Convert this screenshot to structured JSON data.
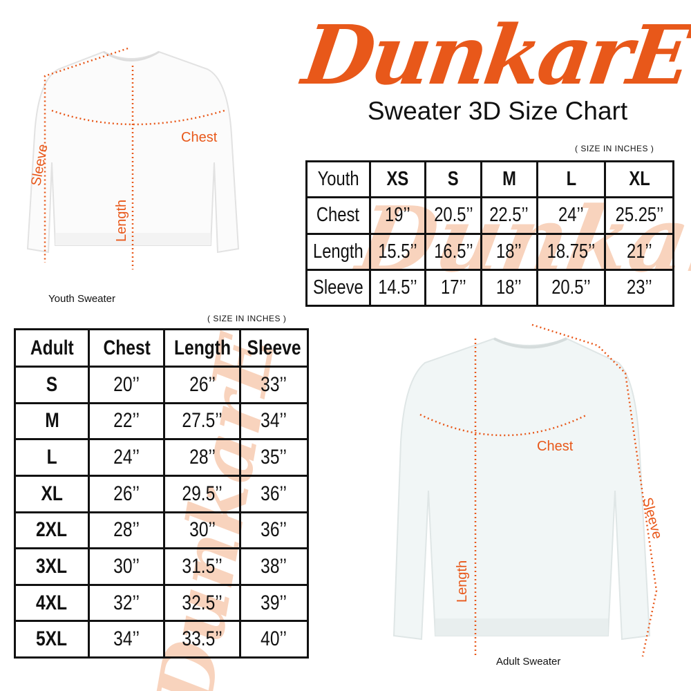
{
  "brand": {
    "logo_text": "DunkarE",
    "color": "#e8581a"
  },
  "title": "Sweater 3D Size Chart",
  "youth": {
    "unit_note": "( SIZE IN INCHES )",
    "header": [
      "Youth",
      "XS",
      "S",
      "M",
      "L",
      "XL"
    ],
    "rows": [
      {
        "label": "Chest",
        "values": [
          "19’’",
          "20.5’’",
          "22.5’’",
          "24’’",
          "25.25’’"
        ]
      },
      {
        "label": "Length",
        "values": [
          "15.5’’",
          "16.5’’",
          "18’’",
          "18.75’’",
          "21’’"
        ]
      },
      {
        "label": "Sleeve",
        "values": [
          "14.5’’",
          "17’’",
          "18’’",
          "20.5’’",
          "23’’"
        ]
      }
    ],
    "image_caption": "Youth Sweater",
    "measure_labels": {
      "chest": "Chest",
      "length": "Length",
      "sleeve": "Sleeve"
    }
  },
  "adult": {
    "unit_note": "( SIZE IN INCHES )",
    "header": [
      "Adult",
      "Chest",
      "Length",
      "Sleeve"
    ],
    "rows": [
      {
        "size": "S",
        "values": [
          "20’’",
          "26’’",
          "33’’"
        ]
      },
      {
        "size": "M",
        "values": [
          "22’’",
          "27.5’’",
          "34’’"
        ]
      },
      {
        "size": "L",
        "values": [
          "24’’",
          "28’’",
          "35’’"
        ]
      },
      {
        "size": "XL",
        "values": [
          "26’’",
          "29.5’’",
          "36’’"
        ]
      },
      {
        "size": "2XL",
        "values": [
          "28’’",
          "30’’",
          "36’’"
        ]
      },
      {
        "size": "3XL",
        "values": [
          "30’’",
          "31.5’’",
          "38’’"
        ]
      },
      {
        "size": "4XL",
        "values": [
          "32’’",
          "32.5’’",
          "39’’"
        ]
      },
      {
        "size": "5XL",
        "values": [
          "34’’",
          "33.5’’",
          "40’’"
        ]
      }
    ],
    "image_caption": "Adult Sweater",
    "measure_labels": {
      "chest": "Chest",
      "length": "Length",
      "sleeve": "Sleeve"
    }
  }
}
